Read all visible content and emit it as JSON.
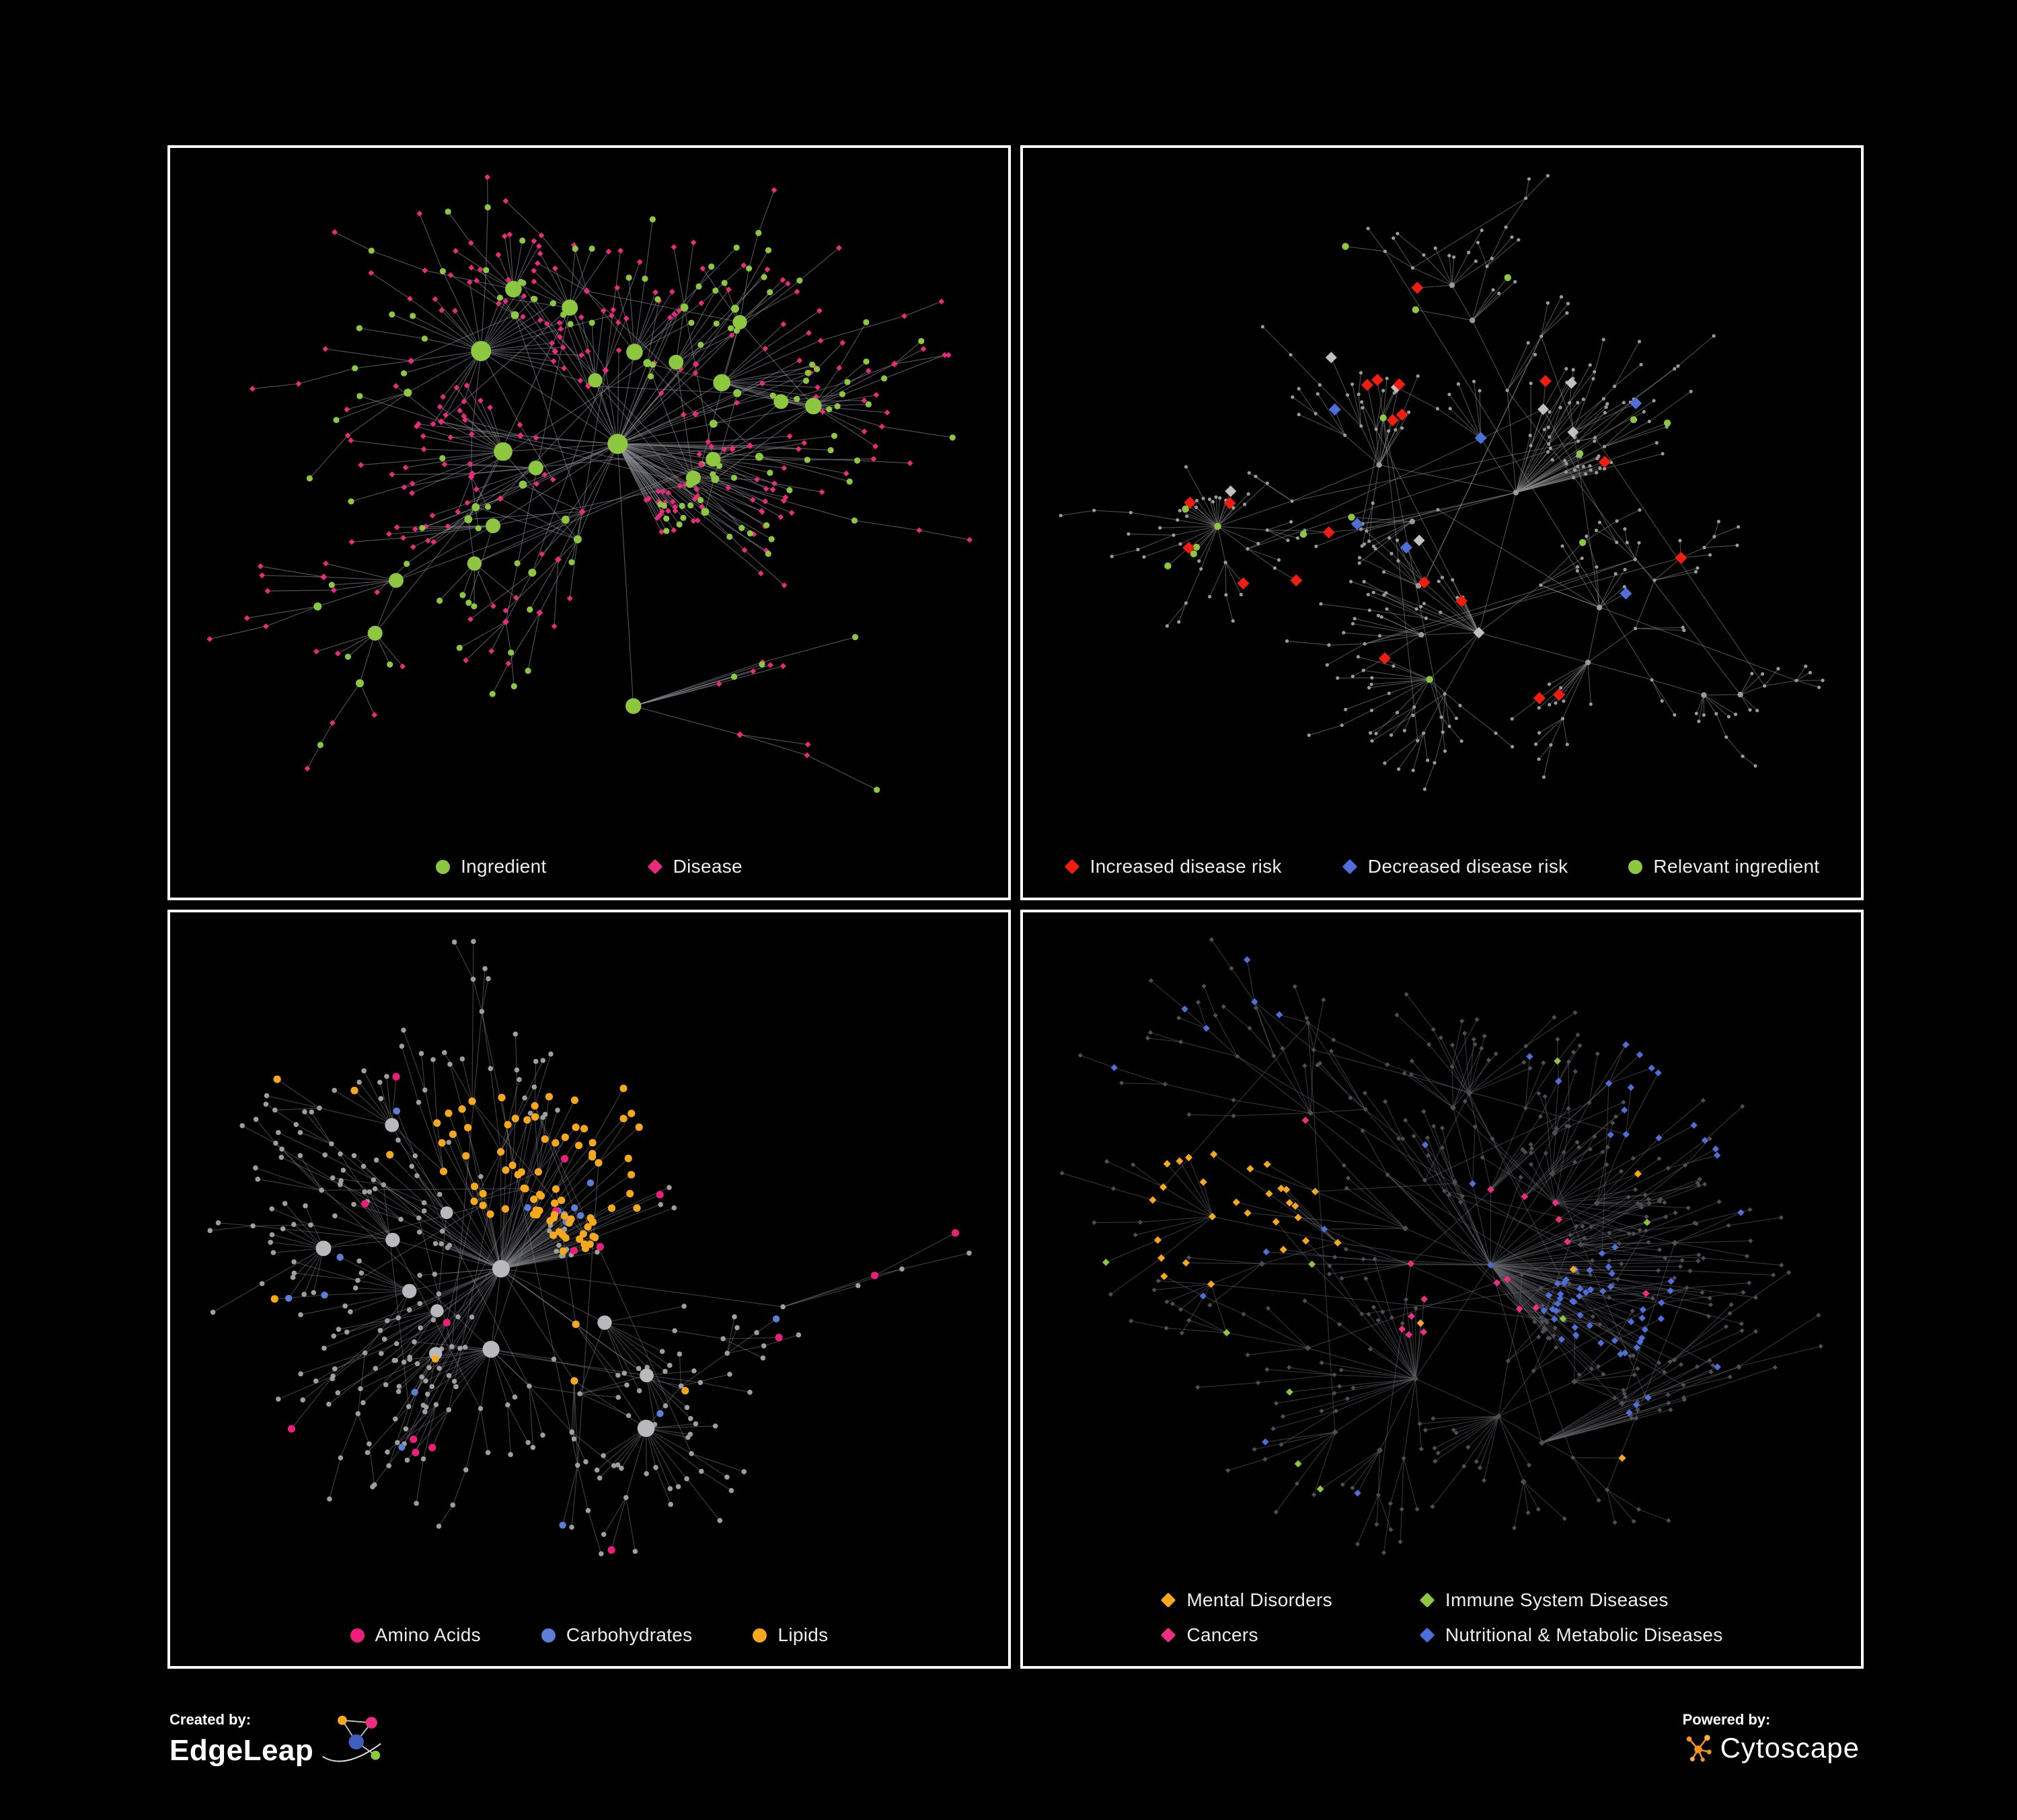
{
  "figure": {
    "background": "#000000",
    "panel_border": "#ffffff"
  },
  "panels": [
    {
      "id": "ingredient-disease-network",
      "style": "p1",
      "seed": 7,
      "node_count": 430,
      "extra_edges": 48,
      "attach_exponent": 1.5,
      "edge_color": "#90909a",
      "edge_opacity": 0.55,
      "colors": {
        "ingredient": "#8dc63f",
        "disease": "#ec2a7c"
      },
      "legend_rows": [
        [
          {
            "label": "Ingredient",
            "shape": "circle",
            "color": "#8dc63f"
          },
          {
            "label": "Disease",
            "shape": "diamond",
            "color": "#ec2a7c"
          }
        ]
      ]
    },
    {
      "id": "disease-risk-network",
      "style": "p2",
      "seed": 23,
      "node_count": 400,
      "extra_edges": 26,
      "attach_exponent": 1.15,
      "edge_color": "#8d8d8d",
      "edge_opacity": 0.5,
      "colors": {
        "base": "#9a9a9a",
        "increased": "#f01d10",
        "decreased": "#4e6fd9",
        "ingredient": "#8dc63f",
        "neutral": "#c0c0c0"
      },
      "legend_rows": [
        [
          {
            "label": "Increased disease risk",
            "shape": "diamond",
            "color": "#f01d10"
          },
          {
            "label": "Decreased disease risk",
            "shape": "diamond",
            "color": "#4e6fd9"
          },
          {
            "label": "Relevant ingredient",
            "shape": "circle",
            "color": "#8dc63f"
          }
        ]
      ]
    },
    {
      "id": "nutrient-class-network",
      "style": "p3",
      "seed": 41,
      "node_count": 420,
      "extra_edges": 36,
      "attach_exponent": 1.45,
      "edge_color": "#85858d",
      "edge_opacity": 0.45,
      "colors": {
        "base": "#9e9e9e",
        "hub": "#b9b9bd",
        "amino": "#ec1e79",
        "carb": "#5b7fd6",
        "lipid": "#f5a81c"
      },
      "legend_rows": [
        [
          {
            "label": "Amino Acids",
            "shape": "circle",
            "color": "#ec1e79"
          },
          {
            "label": "Carbohydrates",
            "shape": "circle",
            "color": "#5b7fd6"
          },
          {
            "label": "Lipids",
            "shape": "circle",
            "color": "#f5a81c"
          }
        ]
      ]
    },
    {
      "id": "disease-class-network",
      "style": "p4",
      "seed": 59,
      "node_count": 540,
      "extra_edges": 40,
      "attach_exponent": 1.35,
      "edge_color": "#63636b",
      "edge_opacity": 0.5,
      "colors": {
        "base": "#4e4e55",
        "mental": "#f5a81c",
        "immune": "#8dc63f",
        "cancer": "#ed2d7f",
        "metabolic": "#4e6fd9"
      },
      "legend_rows": [
        [
          {
            "label": "Mental Disorders",
            "shape": "diamond",
            "color": "#f5a81c"
          },
          {
            "label": "Immune System Diseases",
            "shape": "diamond",
            "color": "#8dc63f"
          }
        ],
        [
          {
            "label": "Cancers",
            "shape": "diamond",
            "color": "#ed2d7f"
          },
          {
            "label": "Nutritional & Metabolic Diseases",
            "shape": "diamond",
            "color": "#4e6fd9"
          }
        ]
      ]
    }
  ],
  "footer": {
    "created_by_label": "Created by:",
    "creator_name": "EdgeLeap",
    "powered_by_label": "Powered by:",
    "engine_name": "Cytoscape"
  }
}
